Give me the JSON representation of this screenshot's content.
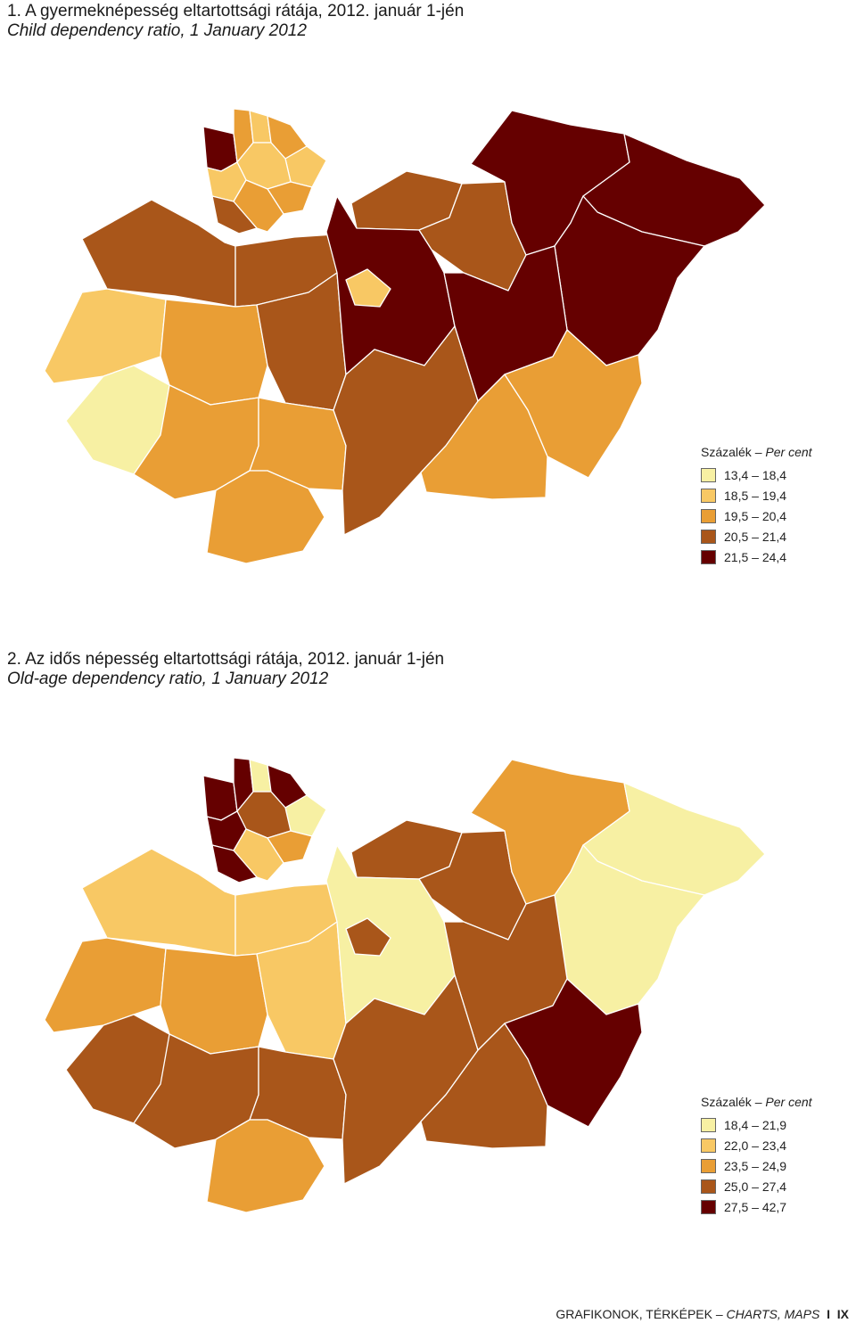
{
  "map1": {
    "title_hu": "1. A gyermeknépesség eltartottsági rátája, 2012. január 1-jén",
    "title_en": "Child dependency ratio, 1 January 2012",
    "legend_hu": "Százalék",
    "legend_en": "Per cent",
    "classes": [
      {
        "label": "13,4 – 18,4",
        "color": "#f7f0a3"
      },
      {
        "label": "18,5 – 19,4",
        "color": "#f8c864"
      },
      {
        "label": "19,5 – 20,4",
        "color": "#e99e35"
      },
      {
        "label": "20,5 – 21,4",
        "color": "#a9561a"
      },
      {
        "label": "21,5 – 24,4",
        "color": "#650000"
      }
    ]
  },
  "map2": {
    "title_hu": "2. Az idős népesség eltartottsági rátája, 2012. január 1-jén",
    "title_en": "Old-age dependency ratio, 1 January 2012",
    "legend_hu": "Százalék",
    "legend_en": "Per cent",
    "classes": [
      {
        "label": "18,4 – 21,9",
        "color": "#f7f0a3"
      },
      {
        "label": "22,0 – 23,4",
        "color": "#f8c864"
      },
      {
        "label": "23,5 – 24,9",
        "color": "#e99e35"
      },
      {
        "label": "25,0 – 27,4",
        "color": "#a9561a"
      },
      {
        "label": "27,5 – 42,7",
        "color": "#650000"
      }
    ]
  },
  "footer": {
    "text_hu": "GRAFIKONOK, TÉRKÉPEK – ",
    "text_en": "CHARTS, MAPS",
    "sep": "I",
    "page": "IX"
  }
}
